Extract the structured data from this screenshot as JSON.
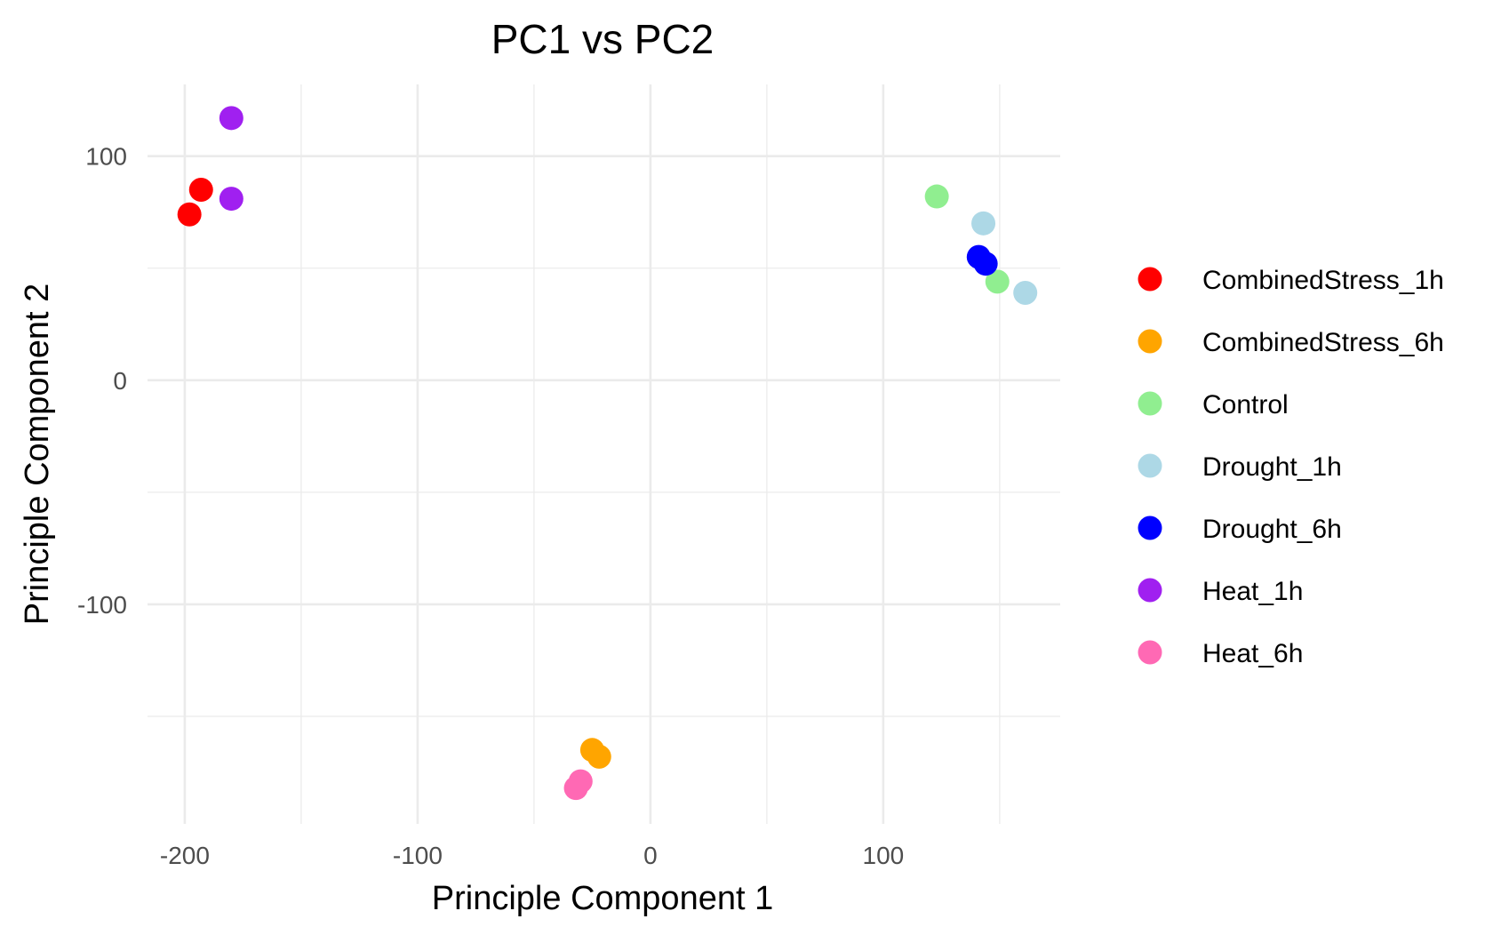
{
  "chart_data": {
    "type": "scatter",
    "title": "PC1 vs PC2",
    "xlabel": "Principle Component 1",
    "ylabel": "Principle Component 2",
    "xlim": [
      -216,
      176
    ],
    "ylim": [
      -198,
      132
    ],
    "x_ticks": [
      -200,
      -100,
      0,
      100
    ],
    "y_ticks": [
      -100,
      0,
      100
    ],
    "x_tick_labels": [
      "-200",
      "-100",
      "0",
      "100"
    ],
    "y_tick_labels": [
      "-100",
      "0",
      "100"
    ],
    "x_minor_gridlines": [
      -150,
      -50,
      50,
      150
    ],
    "y_minor_gridlines": [
      -150,
      -50,
      50
    ],
    "grid": true,
    "legend_position": "right",
    "series": [
      {
        "name": "CombinedStress_1h",
        "color": "#ff0000",
        "points": [
          [
            -193,
            85
          ],
          [
            -198,
            74
          ]
        ]
      },
      {
        "name": "CombinedStress_6h",
        "color": "#ffa500",
        "points": [
          [
            -25,
            -165
          ],
          [
            -22,
            -168
          ]
        ]
      },
      {
        "name": "Control",
        "color": "#90ee90",
        "points": [
          [
            123,
            82
          ],
          [
            149,
            44
          ]
        ]
      },
      {
        "name": "Drought_1h",
        "color": "#add8e6",
        "points": [
          [
            143,
            70
          ],
          [
            161,
            39
          ]
        ]
      },
      {
        "name": "Drought_6h",
        "color": "#0000ff",
        "points": [
          [
            141,
            55
          ],
          [
            144,
            52
          ]
        ]
      },
      {
        "name": "Heat_1h",
        "color": "#a020f0",
        "points": [
          [
            -180,
            117
          ],
          [
            -180,
            81
          ]
        ]
      },
      {
        "name": "Heat_6h",
        "color": "#ff69b4",
        "points": [
          [
            -30,
            -179
          ],
          [
            -32,
            -182
          ]
        ]
      }
    ]
  }
}
